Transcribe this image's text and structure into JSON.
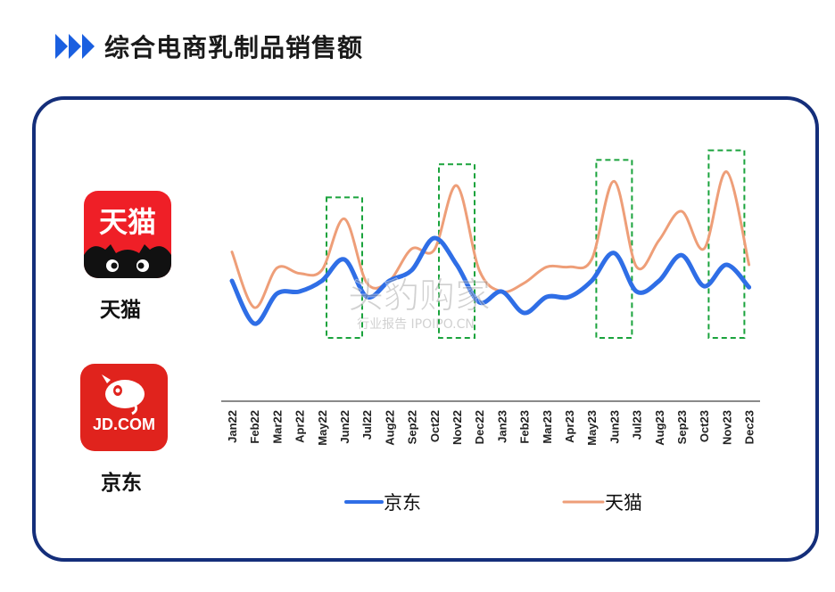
{
  "header": {
    "title": "综合电商乳制品销售额"
  },
  "platforms": {
    "tmall": {
      "logo_text": "天猫",
      "name": "天猫"
    },
    "jd": {
      "logo_text": "JD.COM",
      "name": "京东"
    }
  },
  "watermark": {
    "main": "头豹购家",
    "sub": "行业报告 IPOIPO.CN"
  },
  "colors": {
    "jd": "#2f6ee6",
    "tmall": "#ee9e78",
    "highlight": "#1aa33c",
    "frame": "#142e7a",
    "title_arrow": "#1a5fe0"
  },
  "chart_data": {
    "type": "line",
    "categories": [
      "Jan22",
      "Feb22",
      "Mar22",
      "Apr22",
      "May22",
      "Jun22",
      "Jul22",
      "Aug22",
      "Sep22",
      "Oct22",
      "Nov22",
      "Dec22",
      "Jan23",
      "Feb23",
      "Mar23",
      "Apr23",
      "May23",
      "Jun23",
      "Jul23",
      "Aug23",
      "Sep23",
      "Oct23",
      "Nov23",
      "Dec23"
    ],
    "series": [
      {
        "name": "京东",
        "values": [
          50,
          10,
          38,
          40,
          50,
          70,
          35,
          50,
          60,
          90,
          65,
          30,
          40,
          20,
          35,
          35,
          50,
          76,
          40,
          50,
          74,
          45,
          65,
          44
        ]
      },
      {
        "name": "天猫",
        "values": [
          77,
          25,
          62,
          57,
          60,
          108,
          48,
          50,
          80,
          79,
          139,
          60,
          40,
          48,
          63,
          63,
          70,
          143,
          63,
          88,
          115,
          80,
          152,
          65
        ]
      }
    ],
    "highlights": [
      "Jun22",
      "Nov22",
      "Jun23",
      "Nov23"
    ],
    "legend_position": "bottom",
    "ylim": [
      0,
      160
    ],
    "grid": false
  }
}
